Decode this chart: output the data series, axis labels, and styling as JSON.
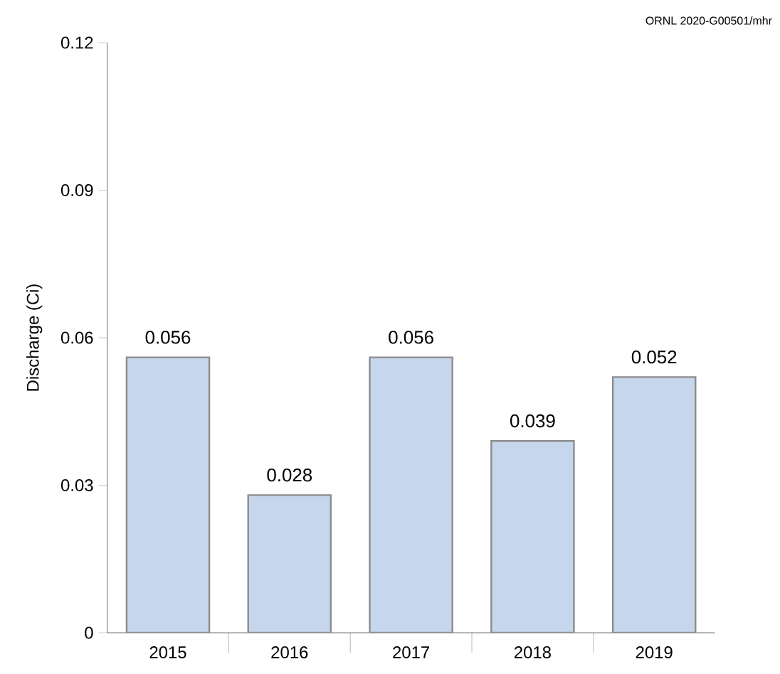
{
  "chart_data": {
    "type": "bar",
    "ylabel": "Discharge (Ci)",
    "categories": [
      "2015",
      "2016",
      "2017",
      "2018",
      "2019"
    ],
    "values": [
      0.056,
      0.028,
      0.056,
      0.039,
      0.052
    ],
    "color": "#c6d6ec",
    "data_labels": true,
    "grid": false,
    "ylim": [
      0,
      0.12
    ],
    "yticks": [
      0,
      0.03,
      0.06,
      0.09,
      0.12
    ],
    "annotations": [
      "ORNL 2020-G00501/mhr"
    ]
  }
}
